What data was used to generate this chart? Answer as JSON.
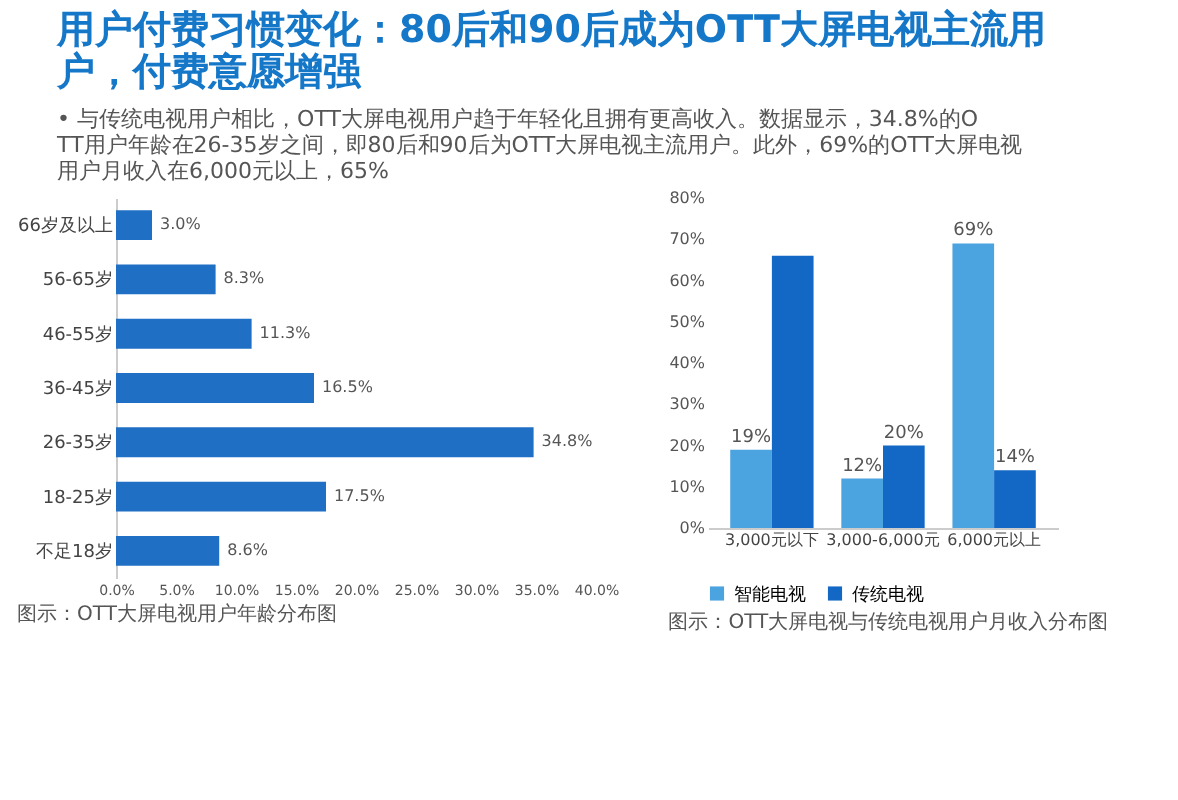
{
  "chart_data": [
    {
      "type": "bar",
      "orientation": "horizontal",
      "title": "用户付费习惯变化：80后和90后成为OTT大屏电视主流用户，付费意愿增强",
      "subtitle": "• 与传统电视用户相比，OTT大屏电视用户趋于年轻化且拥有更高收入。数据显示，34.8%的OTT用户年龄在26-35岁之间，即80后和90后为OTT大屏电视主流用户。此外，69%的OTT大屏电视用户月收入在6,000元以上，65%",
      "categories": [
        "66岁及以上",
        "56-65岁",
        "46-55岁",
        "36-45岁",
        "26-35岁",
        "18-25岁",
        "不足18岁"
      ],
      "values": [
        3.0,
        8.3,
        11.3,
        16.5,
        34.8,
        17.5,
        8.6
      ],
      "color": "#1f6fc5",
      "value_labels": [
        "3.0%",
        "8.3%",
        "11.3%",
        "16.5%",
        "34.8%",
        "17.5%",
        "8.6%"
      ],
      "xlim": [
        0,
        40
      ],
      "xticks": [
        {
          "value": 0,
          "label": "0.0%"
        },
        {
          "value": 5,
          "label": "5.0%"
        },
        {
          "value": 10,
          "label": "10.0%"
        },
        {
          "value": 15,
          "label": "15.0%"
        },
        {
          "value": 20,
          "label": "20.0%"
        },
        {
          "value": 25,
          "label": "25.0%"
        },
        {
          "value": 30,
          "label": "30.0%"
        },
        {
          "value": 35,
          "label": "35.0%"
        },
        {
          "value": 40,
          "label": "40.0%"
        }
      ],
      "grid": false,
      "annotations": [
        "图示：OTT大屏电视用户年龄分布图"
      ]
    },
    {
      "type": "bar",
      "categories": [
        "3,000元以下",
        "3,000-6,000元",
        "6,000元以上"
      ],
      "series": [
        {
          "name": "智能电视",
          "color": "#4ba3e0",
          "values": [
            19,
            12,
            69
          ],
          "value_labels": [
            "19%",
            "12%",
            "69%"
          ]
        },
        {
          "name": "传统电视",
          "color": "#1268c4",
          "values": [
            66,
            20,
            14
          ],
          "value_labels": [
            null,
            "20%",
            "14%"
          ]
        }
      ],
      "ylim": [
        0,
        80
      ],
      "yticks": [
        {
          "value": 0,
          "label": "0%"
        },
        {
          "value": 10,
          "label": "10%"
        },
        {
          "value": 20,
          "label": "20%"
        },
        {
          "value": 30,
          "label": "30%"
        },
        {
          "value": 40,
          "label": "40%"
        },
        {
          "value": 50,
          "label": "50%"
        },
        {
          "value": 60,
          "label": "60%"
        },
        {
          "value": 70,
          "label": "70%"
        },
        {
          "value": 80,
          "label": "80%"
        }
      ],
      "grid": false,
      "legend": "bottom",
      "annotations": [
        "图示：OTT大屏电视与传统电视用户月收入分布图"
      ]
    }
  ]
}
